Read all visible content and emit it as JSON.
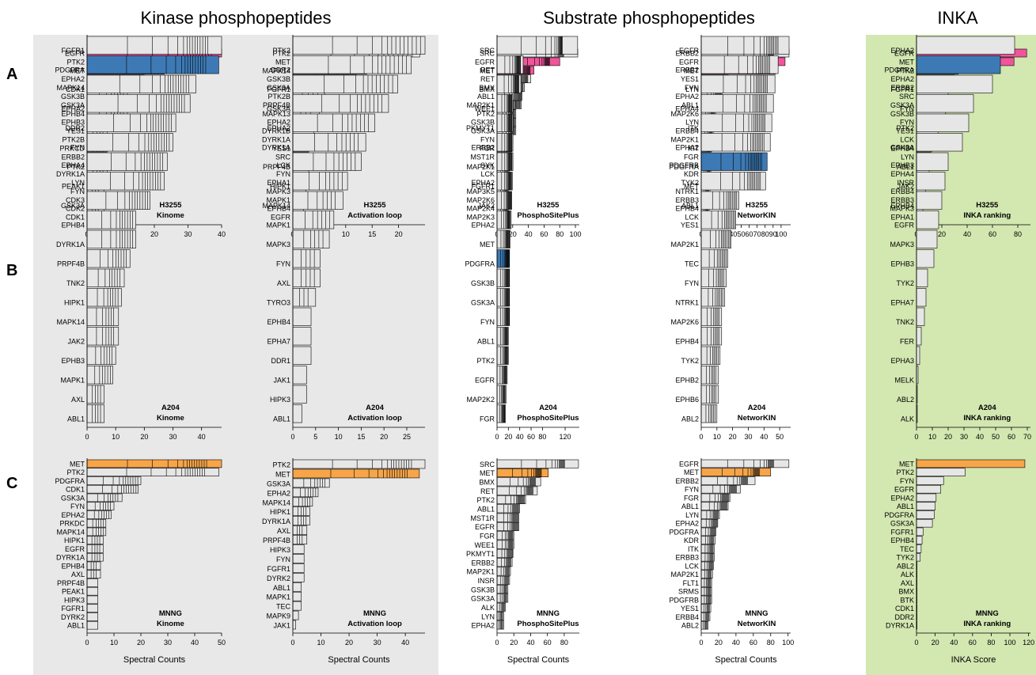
{
  "section_titles": [
    "Kinase phosphopeptides",
    "Substrate phosphopeptides",
    "INKA"
  ],
  "row_labels": [
    "A",
    "B",
    "C"
  ],
  "colors": {
    "H3255": "#f0559b",
    "A204": "#3d7ab5",
    "MNNG": "#f7a548",
    "bar": "#e6e6e6",
    "gray_panel": "#e8e8e8",
    "green_panel": "#d3e7b1"
  },
  "chart_data": [
    {
      "type": "bar",
      "orientation": "horizontal",
      "panel": "A-kinome",
      "cell_line": "H3255",
      "ann1": "H3255",
      "ann2": "Kinome",
      "xlabel": "",
      "xlim": [
        0,
        40
      ],
      "ticks": [
        0,
        10,
        20,
        30,
        40
      ],
      "categories": [
        "EGFR",
        "PTK2",
        "MET",
        "EPHA2",
        "MAPK14",
        "GSK3B",
        "GSK3A",
        "EPHB4",
        "EPHB3",
        "YES1",
        "PTK2B",
        "PRKCD",
        "ERBB2",
        "EPHA4",
        "DYRK1A",
        "LYN",
        "FYN",
        "CDK3",
        "CDK2",
        "CDK1"
      ],
      "values": [
        40,
        24,
        23,
        17,
        14,
        12,
        12,
        12,
        7,
        6,
        6,
        6,
        6,
        6,
        6,
        5,
        5,
        5,
        5,
        5
      ],
      "highlight": [
        0,
        2
      ]
    },
    {
      "type": "bar",
      "orientation": "horizontal",
      "panel": "A-activation",
      "cell_line": "H3255",
      "ann1": "H3255",
      "ann2": "Activation loop",
      "xlabel": "",
      "xlim": [
        0,
        25
      ],
      "ticks": [
        0,
        5,
        10,
        15,
        20
      ],
      "categories": [
        "PTK2",
        "MET",
        "MAPK14",
        "GSK3B",
        "GSK3A",
        "PTK2B",
        "PRPF4B",
        "MAPK13",
        "EPHA2",
        "DYRK1B",
        "DYRK1A",
        "YES1",
        "SRC",
        "LCK",
        "FYN",
        "EPHA1",
        "MAPK3",
        "MAPK1",
        "EPHB4",
        "EGFR"
      ],
      "values": [
        24,
        19,
        14,
        12,
        12,
        6,
        5,
        5,
        4,
        4,
        4,
        3,
        3,
        3,
        3,
        3,
        2.5,
        2.5,
        2,
        2
      ],
      "highlight": [
        1,
        19
      ]
    },
    {
      "type": "bar",
      "orientation": "horizontal",
      "panel": "A-psp",
      "cell_line": "H3255",
      "ann1": "H3255",
      "ann2": "PhosphoSitePlus",
      "xlabel": "",
      "xlim": [
        0,
        105
      ],
      "ticks": [
        0,
        20,
        40,
        60,
        80,
        100
      ],
      "categories": [
        "SRC",
        "EGFR",
        "MET",
        "RET",
        "BMX",
        "ABL1",
        "MAP2K1",
        "PTK2",
        "GSK3B",
        "GSK3A",
        "FYN",
        "FGR",
        "MST1R",
        "SYK",
        "LCK",
        "EPHA2",
        "MAP3K5",
        "MAP2K6",
        "MAP2K4",
        "MAP2K3"
      ],
      "values": [
        103,
        80,
        47,
        43,
        35,
        32,
        31,
        24,
        24,
        24,
        20,
        19,
        18,
        17,
        16,
        16,
        15,
        15,
        15,
        15
      ],
      "highlight": [
        1,
        2
      ]
    },
    {
      "type": "bar",
      "orientation": "horizontal",
      "panel": "A-nk",
      "cell_line": "H3255",
      "ann1": "H3255",
      "ann2": "NetworKIN",
      "xlabel": "",
      "xlim": [
        0,
        112
      ],
      "ticks": [
        0,
        10,
        20,
        30,
        40,
        50,
        60,
        70,
        80,
        90,
        100
      ],
      "categories": [
        "ERBB2",
        "EGFR",
        "MET",
        "YES1",
        "FYN",
        "EPHA2",
        "ABL1",
        "MAP2K6",
        "LYN",
        "ERBB4",
        "MAP2K1",
        "KIT",
        "FGR",
        "PDGFRB",
        "KDR",
        "TYK2",
        "NTRK1",
        "ERBB3",
        "EPHB4",
        "LCK"
      ],
      "values": [
        110,
        105,
        93,
        34,
        28,
        26,
        22,
        18,
        16,
        15,
        14,
        13,
        12,
        12,
        12,
        11,
        11,
        10,
        10,
        10
      ],
      "highlight": [
        1,
        2
      ]
    },
    {
      "type": "bar",
      "orientation": "horizontal",
      "panel": "A-inka",
      "cell_line": "H3255",
      "ann1": "H3255",
      "ann2": "INKA ranking",
      "xlabel": "",
      "xlim": [
        0,
        90
      ],
      "ticks": [
        0,
        20,
        40,
        60,
        80
      ],
      "categories": [
        "EGFR",
        "MET",
        "PTK2",
        "EPHA2",
        "ERBB2",
        "SRC",
        "GSK3A",
        "GSK3B",
        "FYN",
        "YES1",
        "LCK",
        "EPHB4",
        "LYN",
        "EPHB3",
        "EPHA4",
        "INSR",
        "ERBB4",
        "ERBB3",
        "MAPK3",
        "EPHA1"
      ],
      "values": [
        87,
        77,
        33,
        30,
        29,
        25,
        24,
        23,
        20,
        17,
        14,
        12,
        11,
        10,
        10,
        9,
        7,
        6,
        5,
        5
      ],
      "highlight": [
        0,
        1
      ]
    },
    {
      "type": "bar",
      "orientation": "horizontal",
      "panel": "B-kinome",
      "cell_line": "A204",
      "ann1": "A204",
      "ann2": "Kinome",
      "xlabel": "",
      "xlim": [
        0,
        47
      ],
      "ticks": [
        0,
        10,
        20,
        30,
        40
      ],
      "categories": [
        "FGFR1",
        "PDGFRA",
        "CDK1",
        "EPHA2",
        "DDR2",
        "FYN",
        "PTK2",
        "PEAK1",
        "GSK3A",
        "EPHB4",
        "DYRK1A",
        "PRPF4B",
        "TNK2",
        "HIPK1",
        "MAPK14",
        "JAK2",
        "EPHB3",
        "MAPK1",
        "AXL",
        "ABL1"
      ],
      "values": [
        47,
        46,
        38,
        36,
        31,
        30,
        28,
        27,
        22,
        17,
        17,
        15,
        13,
        12,
        11,
        11,
        10,
        9,
        6,
        6
      ],
      "highlight": [
        1
      ]
    },
    {
      "type": "bar",
      "orientation": "horizontal",
      "panel": "B-activation",
      "cell_line": "A204",
      "ann1": "A204",
      "ann2": "Activation loop",
      "xlabel": "",
      "xlim": [
        0,
        29
      ],
      "ticks": [
        0,
        5,
        10,
        15,
        20,
        25
      ],
      "categories": [
        "PTK2",
        "DDR2",
        "FGFR1",
        "GSK3A",
        "EPHA2",
        "DYRK1A",
        "PRPF4B",
        "HIPK1",
        "MAPK14",
        "MAPK1",
        "MAPK3",
        "FYN",
        "AXL",
        "TYRO3",
        "EPHB4",
        "EPHA7",
        "DDR1",
        "JAK1",
        "HIPK3",
        "ABL1"
      ],
      "values": [
        29,
        26,
        23,
        21,
        18,
        16,
        15,
        12,
        11,
        9,
        8,
        6,
        6,
        5,
        4,
        4,
        4,
        3,
        3,
        2
      ],
      "highlight": []
    },
    {
      "type": "bar",
      "orientation": "horizontal",
      "panel": "B-psp",
      "cell_line": "A204",
      "ann1": "A204",
      "ann2": "PhosphoSitePlus",
      "xlabel": "",
      "xlim": [
        0,
        145
      ],
      "ticks": [
        0,
        20,
        40,
        60,
        80,
        120
      ],
      "categories": [
        "SRC",
        "RET",
        "BMX",
        "WEE1",
        "PKMYT1",
        "ERBB2",
        "MAP2K1",
        "FGFR1",
        "JAK2",
        "EPHA2",
        "MET",
        "PDGFRA",
        "GSK3B",
        "GSK3A",
        "FYN",
        "ABL1",
        "PTK2",
        "EGFR",
        "MAP2K2",
        "FGR"
      ],
      "values": [
        142,
        46,
        42,
        28,
        28,
        28,
        28,
        27,
        26,
        25,
        23,
        22,
        22,
        22,
        22,
        20,
        20,
        18,
        16,
        15
      ],
      "highlight": [
        11
      ]
    },
    {
      "type": "bar",
      "orientation": "horizontal",
      "panel": "B-nk",
      "cell_line": "A204",
      "ann1": "A204",
      "ann2": "NetworKIN",
      "xlabel": "",
      "xlim": [
        0,
        57
      ],
      "ticks": [
        0,
        10,
        20,
        30,
        40,
        50
      ],
      "categories": [
        "EGFR",
        "ERBB2",
        "LYN",
        "EPHA4",
        "ITK",
        "EPHA2",
        "PDGFRA",
        "MET",
        "ABL1",
        "YES1",
        "MAP2K1",
        "TEC",
        "FYN",
        "NTRK1",
        "MAP2K6",
        "EPHB4",
        "TYK2",
        "EPHB2",
        "EPHB6",
        "ABL2"
      ],
      "values": [
        56,
        49,
        47,
        46,
        45,
        44,
        42,
        41,
        24,
        22,
        19,
        17,
        16,
        15,
        13,
        13,
        12,
        11,
        11,
        10
      ],
      "highlight": [
        6
      ]
    },
    {
      "type": "bar",
      "orientation": "horizontal",
      "panel": "B-inka",
      "cell_line": "A204",
      "ann1": "A204",
      "ann2": "INKA ranking",
      "xlabel": "",
      "xlim": [
        0,
        72
      ],
      "ticks": [
        0,
        10,
        20,
        30,
        40,
        50,
        60,
        70
      ],
      "categories": [
        "EPHA2",
        "PDGFRA",
        "FGFR1",
        "FYN",
        "PTK2",
        "GSK3A",
        "ABL1",
        "JAK2",
        "EPHB4",
        "EGFR",
        "MAPK3",
        "EPHB3",
        "TYK2",
        "EPHA7",
        "TNK2",
        "FER",
        "EPHA3",
        "MELK",
        "ABL2",
        "ALK"
      ],
      "values": [
        62,
        53,
        48,
        36,
        33,
        29,
        20,
        18,
        16,
        14,
        13,
        11,
        7,
        6,
        5,
        3,
        2,
        1,
        0.5,
        0.5
      ],
      "highlight": [
        1
      ]
    },
    {
      "type": "bar",
      "orientation": "horizontal",
      "panel": "C-kinome",
      "cell_line": "MNNG",
      "ann1": "MNNG",
      "ann2": "Kinome",
      "xlabel": "Spectral Counts",
      "xlim": [
        0,
        50
      ],
      "ticks": [
        0,
        10,
        20,
        30,
        40,
        50
      ],
      "categories": [
        "MET",
        "PTK2",
        "PDGFRA",
        "CDK1",
        "GSK3A",
        "FYN",
        "EPHA2",
        "PRKDC",
        "MAPK14",
        "HIPK1",
        "EGFR",
        "DYRK1A",
        "EPHB4",
        "AXL",
        "PRPF4B",
        "PEAK1",
        "HIPK3",
        "FGFR1",
        "DYRK2",
        "ABL1"
      ],
      "values": [
        50,
        49,
        20,
        19,
        13,
        10,
        9,
        7,
        7,
        6,
        6,
        6,
        5,
        5,
        4,
        4,
        4,
        4,
        4,
        4
      ],
      "highlight": [
        0
      ]
    },
    {
      "type": "bar",
      "orientation": "horizontal",
      "panel": "C-activation",
      "cell_line": "MNNG",
      "ann1": "MNNG",
      "ann2": "Activation loop",
      "xlabel": "Spectral Counts",
      "xlim": [
        0,
        47
      ],
      "ticks": [
        0,
        10,
        20,
        30,
        40
      ],
      "categories": [
        "PTK2",
        "MET",
        "GSK3A",
        "EPHA2",
        "MAPK14",
        "HIPK1",
        "DYRK1A",
        "AXL",
        "PRPF4B",
        "HIPK3",
        "FYN",
        "FGFR1",
        "DYRK2",
        "ABL1",
        "MAPK1",
        "TEC",
        "MAPK9",
        "JAK1"
      ],
      "values": [
        47,
        45,
        13,
        9,
        7,
        6,
        6,
        5,
        5,
        4,
        4,
        4,
        4,
        3,
        3,
        3,
        2,
        1
      ],
      "highlight": [
        1
      ]
    },
    {
      "type": "bar",
      "orientation": "horizontal",
      "panel": "C-psp",
      "cell_line": "MNNG",
      "ann1": "MNNG",
      "ann2": "PhosphoSitePlus",
      "xlabel": "Spectral Counts",
      "xlim": [
        0,
        98
      ],
      "ticks": [
        0,
        20,
        40,
        60,
        80
      ],
      "categories": [
        "SRC",
        "MET",
        "BMX",
        "RET",
        "PTK2",
        "ABL1",
        "MST1R",
        "EGFR",
        "FGR",
        "WEE1",
        "PKMYT1",
        "ERBB2",
        "MAP2K1",
        "INSR",
        "GSK3B",
        "GSK3A",
        "ALK",
        "LYN",
        "EPHA2"
      ],
      "values": [
        97,
        61,
        52,
        48,
        34,
        27,
        26,
        26,
        20,
        20,
        19,
        18,
        16,
        15,
        13,
        13,
        10,
        8,
        8
      ],
      "highlight": [
        1
      ]
    },
    {
      "type": "bar",
      "orientation": "horizontal",
      "panel": "C-nk",
      "cell_line": "MNNG",
      "ann1": "MNNG",
      "ann2": "NetworKIN",
      "xlabel": "Spectral Counts",
      "xlim": [
        0,
        103
      ],
      "ticks": [
        0,
        20,
        40,
        60,
        80,
        100
      ],
      "categories": [
        "EGFR",
        "MET",
        "ERBB2",
        "FYN",
        "FGR",
        "ABL1",
        "LYN",
        "EPHA2",
        "PDGFRA",
        "KDR",
        "ITK",
        "ERBB3",
        "LCK",
        "MAP2K1",
        "FLT1",
        "SRMS",
        "PDGFRB",
        "YES1",
        "ERBB4",
        "ABL2"
      ],
      "values": [
        101,
        80,
        62,
        45,
        33,
        31,
        21,
        19,
        17,
        16,
        15,
        15,
        14,
        13,
        12,
        12,
        12,
        11,
        10,
        8
      ],
      "highlight": [
        1
      ]
    },
    {
      "type": "bar",
      "orientation": "horizontal",
      "panel": "C-inka",
      "cell_line": "MNNG",
      "ann1": "MNNG",
      "ann2": "INKA ranking",
      "xlabel": "INKA Score",
      "xlim": [
        0,
        122
      ],
      "ticks": [
        0,
        20,
        40,
        60,
        80,
        100,
        120
      ],
      "categories": [
        "MET",
        "PTK2",
        "FYN",
        "EGFR",
        "EPHA2",
        "ABL1",
        "PDGFRA",
        "GSK3A",
        "FGFR1",
        "EPHB4",
        "TEC",
        "TYK2",
        "ABL2",
        "ALK",
        "AXL",
        "BMX",
        "BTK",
        "CDK1",
        "DDR2",
        "DYRK1A"
      ],
      "values": [
        116,
        52,
        29,
        26,
        21,
        20,
        19,
        17,
        7,
        6,
        5,
        4,
        0.5,
        0.5,
        0.5,
        0.5,
        0.5,
        0.5,
        0.5,
        0.5
      ],
      "highlight": [
        0
      ]
    }
  ]
}
